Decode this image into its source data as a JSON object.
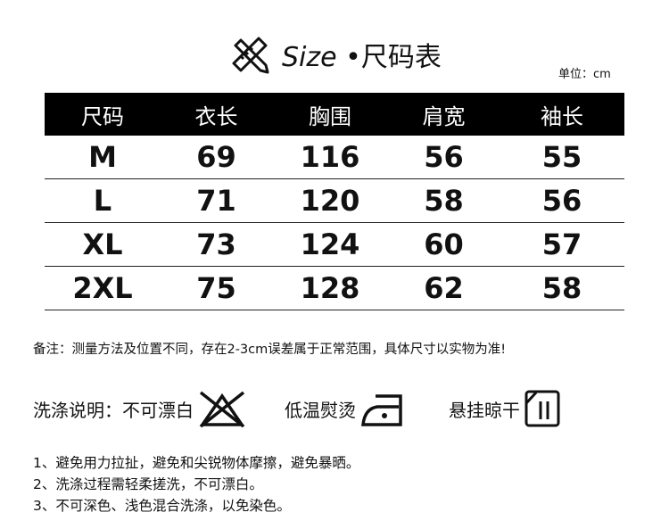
{
  "title": {
    "icon": "ruler-pencil-icon",
    "text_en": "Size",
    "text_cn": "•尺码表"
  },
  "unit": "单位：cm",
  "table": {
    "headers": [
      "尺码",
      "衣长",
      "胸围",
      "肩宽",
      "袖长"
    ],
    "rows": [
      [
        "M",
        "69",
        "116",
        "56",
        "55"
      ],
      [
        "L",
        "71",
        "120",
        "58",
        "56"
      ],
      [
        "XL",
        "73",
        "124",
        "60",
        "57"
      ],
      [
        "2XL",
        "75",
        "128",
        "62",
        "58"
      ]
    ]
  },
  "note": "备注：测量方法及位置不同，存在2-3cm误差属于正常范围，具体尺寸以实物为准!",
  "care": {
    "label": "洗涤说明：",
    "items": [
      {
        "text": "不可漂白",
        "icon": "no-bleach-icon"
      },
      {
        "text": "低温熨烫",
        "icon": "low-iron-icon"
      },
      {
        "text": "悬挂晾干",
        "icon": "hang-dry-icon"
      }
    ]
  },
  "instructions": [
    "1、避免用力拉扯，避免和尖锐物体摩擦，避免暴晒。",
    "2、洗涤过程需轻柔搓洗，不可漂白。",
    "3、不可深色、浅色混合洗涤，以免染色。"
  ]
}
